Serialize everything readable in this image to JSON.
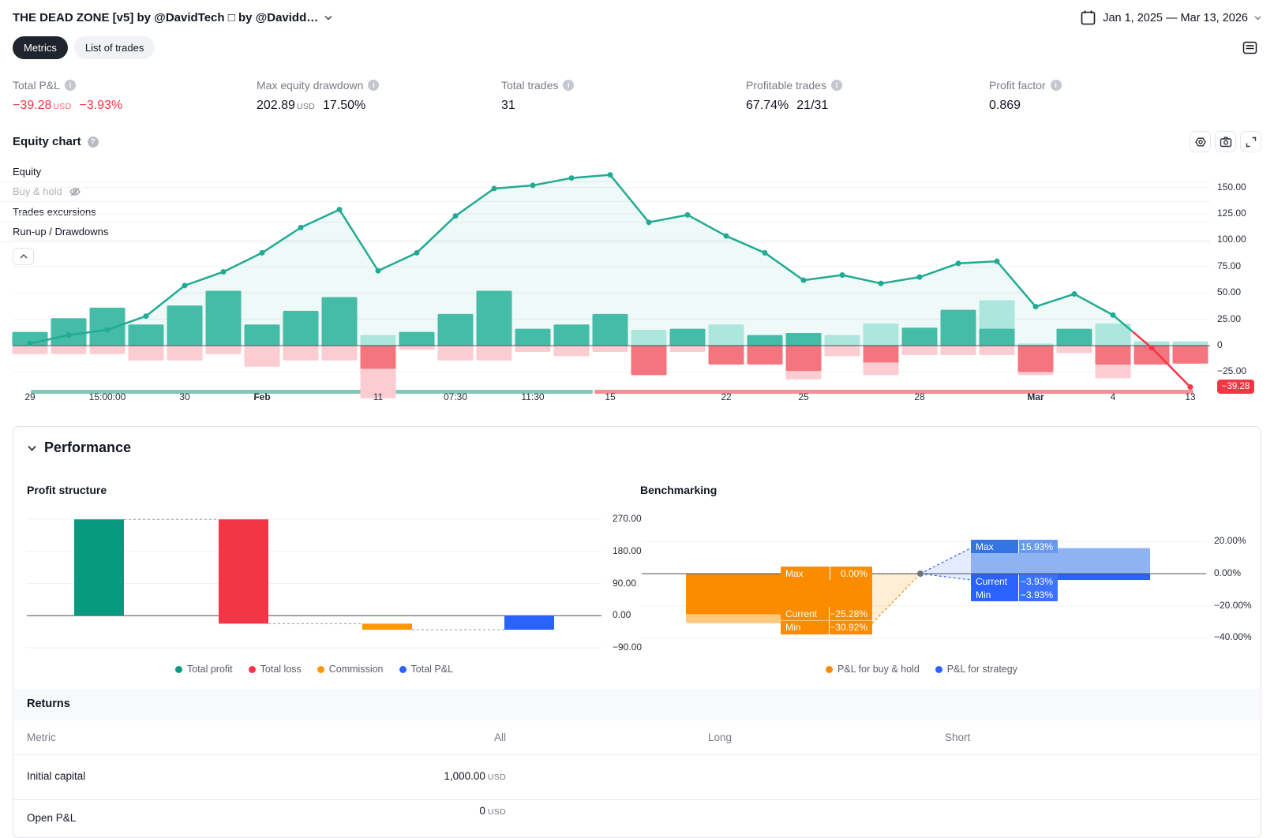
{
  "header": {
    "title": "THE DEAD ZONE [v5] by @DavidTech □ by @Davidd…",
    "date_range": "Jan 1, 2025 — Mar 13, 2026"
  },
  "tabs": {
    "metrics": "Metrics",
    "list_of_trades": "List of trades"
  },
  "summary": {
    "items": [
      {
        "label": "Total P&L",
        "value": "−39.28",
        "currency": "USD",
        "extra": "−3.93%"
      },
      {
        "label": "Max equity drawdown",
        "value": "202.89",
        "currency": "USD",
        "extra": "17.50%"
      },
      {
        "label": "Total trades",
        "value": "31"
      },
      {
        "label": "Profitable trades",
        "value": "67.74%",
        "extra": "21/31"
      },
      {
        "label": "Profit factor",
        "value": "0.869"
      }
    ]
  },
  "equity": {
    "title": "Equity chart",
    "legend": {
      "equity": "Equity",
      "buy_hold": "Buy & hold",
      "trades_excursions": "Trades excursions",
      "runup_drawdowns": "Run-up / Drawdowns"
    },
    "last_value": "−39.28",
    "chart_data": {
      "type": "line+bars",
      "unit": "USD",
      "title": "Equity chart",
      "ylim": [
        -50,
        165
      ],
      "y_ticks": [
        {
          "v": 150,
          "label": "150.00"
        },
        {
          "v": 125,
          "label": "125.00"
        },
        {
          "v": 100,
          "label": "100.00"
        },
        {
          "v": 75,
          "label": "75.00"
        },
        {
          "v": 50,
          "label": "50.00"
        },
        {
          "v": 25,
          "label": "25.00"
        },
        {
          "v": 0,
          "label": "0"
        },
        {
          "v": -25,
          "label": "−25.00"
        }
      ],
      "x_ticks": [
        {
          "i": 0,
          "label": "29",
          "bold": false
        },
        {
          "i": 2,
          "label": "15:00:00",
          "bold": false
        },
        {
          "i": 4,
          "label": "30",
          "bold": false
        },
        {
          "i": 6,
          "label": "Feb",
          "bold": true
        },
        {
          "i": 9,
          "label": "11",
          "bold": false
        },
        {
          "i": 11,
          "label": "07:30",
          "bold": false
        },
        {
          "i": 13,
          "label": "11:30",
          "bold": false
        },
        {
          "i": 15,
          "label": "15",
          "bold": false
        },
        {
          "i": 18,
          "label": "22",
          "bold": false
        },
        {
          "i": 20,
          "label": "25",
          "bold": false
        },
        {
          "i": 23,
          "label": "28",
          "bold": false
        },
        {
          "i": 26,
          "label": "Mar",
          "bold": true
        },
        {
          "i": 28,
          "label": "4",
          "bold": false
        },
        {
          "i": 30,
          "label": "13",
          "bold": false
        }
      ],
      "equity_line": [
        2,
        10,
        15,
        28,
        57,
        70,
        88,
        112,
        129,
        71,
        88,
        123,
        149,
        152,
        159,
        162,
        117,
        124,
        104,
        88,
        62,
        67,
        59,
        65,
        78,
        80,
        37,
        49,
        29,
        -2,
        -39.28
      ],
      "red_tail_from_index": 28,
      "trades_runup_drawdown": [
        [
          0,
          13,
          8,
          0
        ],
        [
          0,
          26,
          8,
          0
        ],
        [
          0,
          36,
          8,
          0
        ],
        [
          0,
          20,
          14,
          0
        ],
        [
          0,
          38,
          14,
          0
        ],
        [
          0,
          52,
          8,
          0
        ],
        [
          0,
          20,
          20,
          0
        ],
        [
          0,
          33,
          14,
          0
        ],
        [
          0,
          46,
          14,
          0
        ],
        [
          10,
          0,
          50,
          22
        ],
        [
          0,
          13,
          4,
          0
        ],
        [
          0,
          30,
          14,
          0
        ],
        [
          0,
          52,
          14,
          0
        ],
        [
          0,
          16,
          6,
          0
        ],
        [
          0,
          20,
          10,
          0
        ],
        [
          0,
          30,
          6,
          0
        ],
        [
          15,
          0,
          28,
          28
        ],
        [
          0,
          16,
          6,
          0
        ],
        [
          20,
          0,
          18,
          18
        ],
        [
          0,
          10,
          18,
          18
        ],
        [
          0,
          12,
          32,
          24
        ],
        [
          10,
          0,
          10,
          0
        ],
        [
          21,
          0,
          28,
          16
        ],
        [
          0,
          17,
          9,
          0
        ],
        [
          0,
          34,
          9,
          0
        ],
        [
          43,
          16,
          9,
          0
        ],
        [
          2,
          0,
          28,
          25
        ],
        [
          0,
          16,
          7,
          0
        ],
        [
          21,
          0,
          31,
          18
        ],
        [
          4,
          0,
          18,
          18
        ],
        [
          4,
          0,
          17,
          17
        ]
      ],
      "timeline_strip": {
        "green": [
          39,
          751
        ],
        "red": [
          753,
          1512
        ]
      },
      "colors": {
        "line": "#22ab94",
        "line_negative": "#f23645",
        "area": "rgba(34,171,148,0.07)",
        "runup": "#44bca8",
        "runup_light": "#ace6dc",
        "drawdown": "#f4757d",
        "drawdown_light": "#fbccd2",
        "strip_green": "#7fcab6",
        "strip_red": "#f58f96",
        "grid": "#f0f2f5",
        "zero": "#4b4f58"
      }
    }
  },
  "performance": {
    "title": "Performance",
    "profit_structure": {
      "title": "Profit structure",
      "chart_data": {
        "type": "bar",
        "subtype": "waterfall",
        "ylim": [
          -90,
          270
        ],
        "y_ticks": [
          {
            "v": 270,
            "label": "270.00"
          },
          {
            "v": 180,
            "label": "180.00"
          },
          {
            "v": 90,
            "label": "90.00"
          },
          {
            "v": 0,
            "label": "0.00"
          },
          {
            "v": -90,
            "label": "−90.00"
          }
        ],
        "bars": [
          {
            "name": "Total profit",
            "color": "#089981",
            "from": 0,
            "to": 269.55
          },
          {
            "name": "Total loss",
            "color": "#f23645",
            "from": 269.55,
            "to": -22.31
          },
          {
            "name": "Commission",
            "color": "#ff9800",
            "from": -22.31,
            "to": -39.28
          },
          {
            "name": "Total P&L",
            "color": "#2962ff",
            "from": 0,
            "to": -39.28
          }
        ]
      },
      "legend": [
        {
          "label": "Total profit",
          "color": "#089981"
        },
        {
          "label": "Total loss",
          "color": "#f23645"
        },
        {
          "label": "Commission",
          "color": "#ff9800"
        },
        {
          "label": "Total P&L",
          "color": "#2962ff"
        }
      ]
    },
    "benchmarking": {
      "title": "Benchmarking",
      "chart_data": {
        "type": "range-bar",
        "ylim": [
          -40,
          20
        ],
        "y_ticks": [
          {
            "v": 20,
            "label": "20.00%"
          },
          {
            "v": 0,
            "label": "0.00%"
          },
          {
            "v": -20,
            "label": "−20.00%"
          },
          {
            "v": -40,
            "label": "−40.00%"
          }
        ],
        "box_labels": {
          "max": "Max",
          "current": "Current",
          "min": "Min"
        },
        "buy_hold": {
          "color": "#fb8c00",
          "max_v": 0,
          "current_v": -25.28,
          "min_v": -30.92,
          "max": "0.00%",
          "current": "−25.28%",
          "min": "−30.92%"
        },
        "strategy": {
          "color": "#2962ff",
          "max_v": 15.93,
          "current_v": -3.93,
          "min_v": -3.93,
          "max": "15.93%",
          "current": "−3.93%",
          "min": "−3.93%"
        }
      },
      "legend": [
        {
          "label": "P&L for buy & hold",
          "color": "#fb8c00"
        },
        {
          "label": "P&L for strategy",
          "color": "#2962ff"
        }
      ]
    },
    "returns": {
      "title": "Returns",
      "columns": [
        "Metric",
        "All",
        "Long",
        "Short"
      ],
      "rows": [
        {
          "metric": "Initial capital",
          "all": "1,000.00",
          "unit": "USD"
        },
        {
          "metric": "Open P&L",
          "all": "0",
          "unit": "USD"
        }
      ]
    }
  }
}
